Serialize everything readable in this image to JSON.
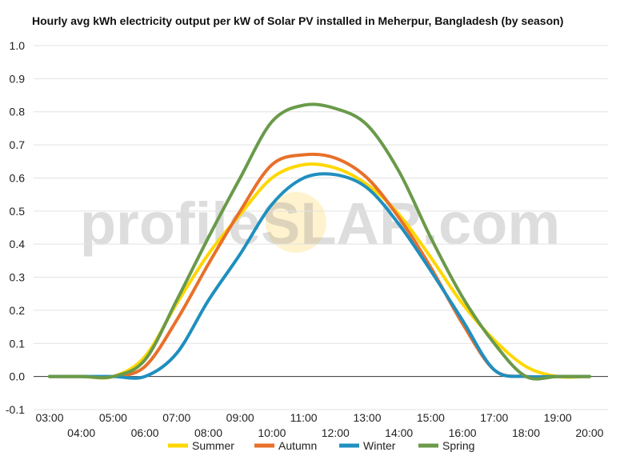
{
  "title": "Hourly avg kWh electricity output per kW of Solar PV installed in Meherpur, Bangladesh (by season)",
  "watermark": {
    "part1": "profile",
    "part2": "S",
    "part3": "LAR.com"
  },
  "chart_data": {
    "type": "line",
    "title": "Hourly avg kWh electricity output per kW of Solar PV installed in Meherpur, Bangladesh (by season)",
    "xlabel": "",
    "ylabel": "",
    "ylim": [
      -0.1,
      1.0
    ],
    "yticks": [
      "-0.1",
      "0.0",
      "0.1",
      "0.2",
      "0.3",
      "0.4",
      "0.5",
      "0.6",
      "0.7",
      "0.8",
      "0.9",
      "1.0"
    ],
    "x": [
      "03:00",
      "04:00",
      "05:00",
      "06:00",
      "07:00",
      "08:00",
      "09:00",
      "10:00",
      "11:00",
      "12:00",
      "13:00",
      "14:00",
      "15:00",
      "16:00",
      "17:00",
      "18:00",
      "19:00",
      "20:00"
    ],
    "grid": true,
    "legend": "bottom",
    "series": [
      {
        "name": "Summer",
        "color": "#FFD700",
        "values": [
          0.0,
          0.0,
          0.0,
          0.06,
          0.22,
          0.37,
          0.49,
          0.6,
          0.64,
          0.63,
          0.58,
          0.49,
          0.36,
          0.22,
          0.11,
          0.03,
          0.0,
          0.0
        ]
      },
      {
        "name": "Autumn",
        "color": "#E8702A",
        "values": [
          0.0,
          0.0,
          0.0,
          0.03,
          0.17,
          0.34,
          0.5,
          0.64,
          0.67,
          0.66,
          0.6,
          0.48,
          0.33,
          0.16,
          0.02,
          0.0,
          0.0,
          0.0
        ]
      },
      {
        "name": "Winter",
        "color": "#1F8FBF",
        "values": [
          0.0,
          0.0,
          0.0,
          0.0,
          0.07,
          0.23,
          0.37,
          0.52,
          0.6,
          0.61,
          0.57,
          0.46,
          0.32,
          0.17,
          0.02,
          0.0,
          0.0,
          0.0
        ]
      },
      {
        "name": "Spring",
        "color": "#6A9A4A",
        "values": [
          0.0,
          0.0,
          0.0,
          0.05,
          0.23,
          0.42,
          0.6,
          0.77,
          0.82,
          0.81,
          0.76,
          0.62,
          0.42,
          0.24,
          0.1,
          0.0,
          0.0,
          0.0
        ]
      }
    ]
  }
}
